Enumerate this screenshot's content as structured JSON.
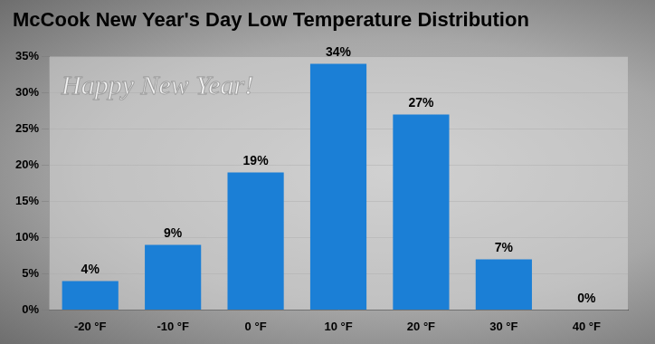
{
  "chart_data": {
    "type": "bar",
    "title": "McCook New Year's Day Low Temperature Distribution",
    "annotations": [
      "Happy New Year!"
    ],
    "categories": [
      "-20 °F",
      "-10 °F",
      "0 °F",
      "10 °F",
      "20 °F",
      "30 °F",
      "40 °F"
    ],
    "values": [
      4,
      9,
      19,
      34,
      27,
      7,
      0
    ],
    "value_labels": [
      "4%",
      "9%",
      "19%",
      "34%",
      "27%",
      "7%",
      "0%"
    ],
    "color": "#1b7fd6",
    "ylim": [
      0,
      35
    ],
    "yticks": [
      {
        "value": 0,
        "label": "0%"
      },
      {
        "value": 5,
        "label": "5%"
      },
      {
        "value": 10,
        "label": "10%"
      },
      {
        "value": 15,
        "label": "15%"
      },
      {
        "value": 20,
        "label": "20%"
      },
      {
        "value": 25,
        "label": "25%"
      },
      {
        "value": 30,
        "label": "30%"
      },
      {
        "value": 35,
        "label": "35%"
      }
    ],
    "grid": true,
    "data_labels": true
  }
}
